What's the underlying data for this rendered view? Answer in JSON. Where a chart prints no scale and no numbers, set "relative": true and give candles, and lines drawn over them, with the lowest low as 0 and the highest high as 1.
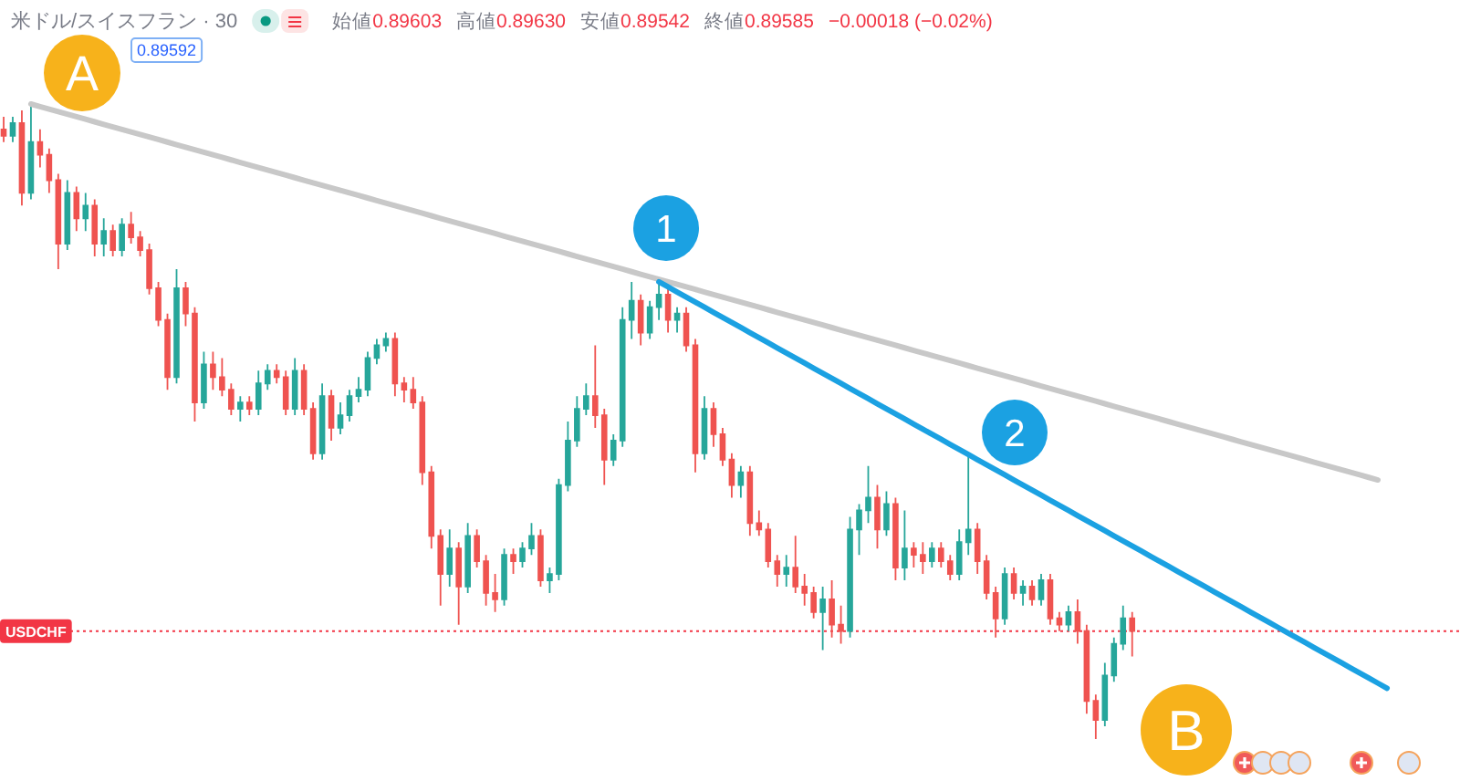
{
  "chart_data": {
    "type": "candlestick",
    "title": "米ドル/スイスフラン · 30",
    "relative": true,
    "categories": [
      null,
      null,
      null,
      null,
      null,
      null,
      null,
      null,
      null,
      null,
      null,
      null,
      null,
      null,
      null,
      null,
      null,
      null,
      null,
      null,
      null,
      null,
      null,
      null,
      null,
      null,
      null,
      null,
      null,
      null,
      null,
      null,
      null,
      null,
      null,
      null,
      null,
      null,
      null,
      null,
      null,
      null,
      null,
      null,
      null,
      null,
      null,
      null,
      null,
      null,
      null,
      null,
      null,
      null,
      null,
      null,
      null,
      null,
      null,
      null,
      null,
      null,
      null,
      null,
      null,
      null,
      null,
      null,
      null,
      null,
      null,
      null,
      null,
      null,
      null,
      null,
      null,
      null,
      null,
      null,
      null,
      null,
      null,
      null,
      null,
      null,
      null,
      null,
      null,
      null,
      null,
      null,
      null,
      null,
      null,
      null,
      null,
      null,
      null,
      null,
      null,
      null,
      null,
      null,
      null,
      null,
      null,
      null,
      null,
      null,
      null,
      null,
      null,
      null,
      null,
      null,
      null,
      null,
      null,
      null,
      null,
      null,
      null,
      null,
      null,
      null,
      null,
      null,
      null,
      null,
      null,
      null,
      null,
      null,
      null,
      null,
      null,
      null,
      null,
      null,
      null,
      null,
      null,
      null,
      null,
      null,
      null,
      null,
      null,
      null,
      null,
      null,
      null
    ],
    "ohlc": [
      [
        0.96,
        0.98,
        0.94,
        0.95
      ],
      [
        0.95,
        0.98,
        0.94,
        0.97
      ],
      [
        0.97,
        0.99,
        0.84,
        0.86
      ],
      [
        0.86,
        1.0,
        0.85,
        0.94
      ],
      [
        0.94,
        0.96,
        0.9,
        0.92
      ],
      [
        0.92,
        0.93,
        0.86,
        0.88
      ],
      [
        0.88,
        0.89,
        0.74,
        0.78
      ],
      [
        0.78,
        0.88,
        0.77,
        0.86
      ],
      [
        0.86,
        0.87,
        0.8,
        0.82
      ],
      [
        0.82,
        0.86,
        0.8,
        0.84
      ],
      [
        0.84,
        0.85,
        0.76,
        0.78
      ],
      [
        0.78,
        0.82,
        0.76,
        0.8
      ],
      [
        0.8,
        0.81,
        0.76,
        0.77
      ],
      [
        0.77,
        0.82,
        0.76,
        0.81
      ],
      [
        0.81,
        0.83,
        0.78,
        0.79
      ],
      [
        0.79,
        0.8,
        0.76,
        0.77
      ],
      [
        0.77,
        0.78,
        0.7,
        0.71
      ],
      [
        0.71,
        0.72,
        0.65,
        0.66
      ],
      [
        0.66,
        0.67,
        0.55,
        0.57
      ],
      [
        0.57,
        0.74,
        0.56,
        0.71
      ],
      [
        0.71,
        0.72,
        0.65,
        0.67
      ],
      [
        0.67,
        0.68,
        0.5,
        0.53
      ],
      [
        0.53,
        0.61,
        0.52,
        0.59
      ],
      [
        0.59,
        0.61,
        0.55,
        0.57
      ],
      [
        0.57,
        0.6,
        0.54,
        0.55
      ],
      [
        0.55,
        0.56,
        0.51,
        0.52
      ],
      [
        0.52,
        0.54,
        0.5,
        0.53
      ],
      [
        0.53,
        0.54,
        0.51,
        0.52
      ],
      [
        0.52,
        0.58,
        0.51,
        0.56
      ],
      [
        0.56,
        0.59,
        0.55,
        0.58
      ],
      [
        0.58,
        0.59,
        0.56,
        0.57
      ],
      [
        0.57,
        0.58,
        0.51,
        0.52
      ],
      [
        0.52,
        0.6,
        0.51,
        0.58
      ],
      [
        0.58,
        0.59,
        0.51,
        0.52
      ],
      [
        0.52,
        0.53,
        0.44,
        0.45
      ],
      [
        0.45,
        0.56,
        0.44,
        0.54
      ],
      [
        0.54,
        0.55,
        0.47,
        0.49
      ],
      [
        0.49,
        0.53,
        0.48,
        0.51
      ],
      [
        0.51,
        0.55,
        0.5,
        0.54
      ],
      [
        0.54,
        0.57,
        0.53,
        0.55
      ],
      [
        0.55,
        0.61,
        0.54,
        0.6
      ],
      [
        0.6,
        0.63,
        0.59,
        0.62
      ],
      [
        0.62,
        0.64,
        0.61,
        0.63
      ],
      [
        0.63,
        0.64,
        0.54,
        0.56
      ],
      [
        0.56,
        0.57,
        0.53,
        0.55
      ],
      [
        0.55,
        0.57,
        0.52,
        0.53
      ],
      [
        0.53,
        0.54,
        0.4,
        0.42
      ],
      [
        0.42,
        0.43,
        0.3,
        0.32
      ],
      [
        0.32,
        0.33,
        0.21,
        0.26
      ],
      [
        0.26,
        0.33,
        0.24,
        0.3
      ],
      [
        0.3,
        0.31,
        0.18,
        0.24
      ],
      [
        0.24,
        0.34,
        0.23,
        0.32
      ],
      [
        0.32,
        0.33,
        0.27,
        0.28
      ],
      [
        0.28,
        0.29,
        0.21,
        0.23
      ],
      [
        0.23,
        0.26,
        0.2,
        0.22
      ],
      [
        0.22,
        0.3,
        0.21,
        0.29
      ],
      [
        0.29,
        0.3,
        0.26,
        0.28
      ],
      [
        0.28,
        0.31,
        0.27,
        0.3
      ],
      [
        0.3,
        0.34,
        0.29,
        0.32
      ],
      [
        0.32,
        0.33,
        0.24,
        0.25
      ],
      [
        0.25,
        0.27,
        0.23,
        0.26
      ],
      [
        0.26,
        0.41,
        0.25,
        0.4
      ],
      [
        0.4,
        0.5,
        0.39,
        0.47
      ],
      [
        0.47,
        0.54,
        0.46,
        0.52
      ],
      [
        0.52,
        0.56,
        0.51,
        0.54
      ],
      [
        0.54,
        0.62,
        0.49,
        0.51
      ],
      [
        0.51,
        0.52,
        0.4,
        0.44
      ],
      [
        0.44,
        0.48,
        0.43,
        0.47
      ],
      [
        0.47,
        0.68,
        0.46,
        0.66
      ],
      [
        0.66,
        0.72,
        0.63,
        0.69
      ],
      [
        0.69,
        0.7,
        0.62,
        0.64
      ],
      [
        0.64,
        0.69,
        0.63,
        0.68
      ],
      [
        0.68,
        0.72,
        0.66,
        0.7
      ],
      [
        0.7,
        0.71,
        0.64,
        0.66
      ],
      [
        0.66,
        0.68,
        0.64,
        0.67
      ],
      [
        0.67,
        0.68,
        0.61,
        0.62
      ],
      [
        0.62,
        0.63,
        0.42,
        0.45
      ],
      [
        0.45,
        0.54,
        0.44,
        0.52
      ],
      [
        0.52,
        0.53,
        0.46,
        0.48
      ],
      [
        0.48,
        0.49,
        0.43,
        0.44
      ],
      [
        0.44,
        0.45,
        0.38,
        0.4
      ],
      [
        0.4,
        0.43,
        0.38,
        0.42
      ],
      [
        0.42,
        0.43,
        0.32,
        0.34
      ],
      [
        0.34,
        0.36,
        0.32,
        0.33
      ],
      [
        0.33,
        0.34,
        0.27,
        0.28
      ],
      [
        0.28,
        0.29,
        0.24,
        0.26
      ],
      [
        0.26,
        0.29,
        0.24,
        0.27
      ],
      [
        0.27,
        0.32,
        0.23,
        0.24
      ],
      [
        0.24,
        0.26,
        0.21,
        0.23
      ],
      [
        0.23,
        0.24,
        0.19,
        0.2
      ],
      [
        0.2,
        0.24,
        0.14,
        0.22
      ],
      [
        0.22,
        0.25,
        0.16,
        0.18
      ],
      [
        0.18,
        0.21,
        0.15,
        0.17
      ],
      [
        0.17,
        0.35,
        0.16,
        0.33
      ],
      [
        0.33,
        0.37,
        0.29,
        0.36
      ],
      [
        0.36,
        0.43,
        0.34,
        0.38
      ],
      [
        0.38,
        0.4,
        0.3,
        0.33
      ],
      [
        0.33,
        0.39,
        0.32,
        0.37
      ],
      [
        0.37,
        0.38,
        0.25,
        0.27
      ],
      [
        0.27,
        0.36,
        0.25,
        0.3
      ],
      [
        0.3,
        0.31,
        0.27,
        0.29
      ],
      [
        0.29,
        0.31,
        0.26,
        0.28
      ],
      [
        0.28,
        0.31,
        0.27,
        0.3
      ],
      [
        0.3,
        0.31,
        0.27,
        0.28
      ],
      [
        0.28,
        0.29,
        0.25,
        0.26
      ],
      [
        0.26,
        0.33,
        0.25,
        0.31
      ],
      [
        0.31,
        0.45,
        0.29,
        0.33
      ],
      [
        0.33,
        0.34,
        0.26,
        0.28
      ],
      [
        0.28,
        0.29,
        0.22,
        0.23
      ],
      [
        0.23,
        0.24,
        0.16,
        0.19
      ],
      [
        0.19,
        0.27,
        0.18,
        0.26
      ],
      [
        0.26,
        0.27,
        0.22,
        0.23
      ],
      [
        0.23,
        0.25,
        0.21,
        0.24
      ],
      [
        0.24,
        0.25,
        0.21,
        0.22
      ],
      [
        0.22,
        0.26,
        0.21,
        0.25
      ],
      [
        0.25,
        0.26,
        0.18,
        0.19
      ],
      [
        0.19,
        0.2,
        0.17,
        0.18
      ],
      [
        0.18,
        0.21,
        0.17,
        0.2
      ],
      [
        0.2,
        0.22,
        0.15,
        0.17
      ],
      [
        0.17,
        0.18,
        0.04,
        0.06
      ],
      [
        0.06,
        0.07,
        0.0,
        0.03
      ],
      [
        0.03,
        0.12,
        0.02,
        0.1
      ],
      [
        0.1,
        0.16,
        0.09,
        0.15
      ],
      [
        0.15,
        0.21,
        0.14,
        0.19
      ],
      [
        0.19,
        0.2,
        0.13,
        0.17
      ],
      null,
      null,
      null,
      null,
      null,
      null,
      null,
      null,
      null,
      null,
      null,
      null,
      null,
      null,
      null,
      null,
      null,
      null,
      null,
      null,
      null,
      null,
      null,
      null,
      null,
      null,
      null,
      null
    ],
    "colors": [
      "#ef5350",
      "#26a69a",
      "#ef5350",
      "#26a69a",
      "#ef5350",
      "#ef5350",
      "#ef5350",
      "#26a69a",
      "#ef5350",
      "#26a69a",
      "#ef5350",
      "#26a69a",
      "#ef5350",
      "#26a69a",
      "#ef5350",
      "#ef5350",
      "#ef5350",
      "#ef5350",
      "#ef5350",
      "#26a69a",
      "#ef5350",
      "#ef5350",
      "#26a69a",
      "#ef5350",
      "#ef5350",
      "#ef5350",
      "#26a69a",
      "#ef5350",
      "#26a69a",
      "#26a69a",
      "#ef5350",
      "#ef5350",
      "#26a69a",
      "#ef5350",
      "#ef5350",
      "#26a69a",
      "#ef5350",
      "#26a69a",
      "#26a69a",
      "#26a69a",
      "#26a69a",
      "#26a69a",
      "#26a69a",
      "#ef5350",
      "#ef5350",
      "#ef5350",
      "#ef5350",
      "#ef5350",
      "#ef5350",
      "#26a69a",
      "#ef5350",
      "#26a69a",
      "#ef5350",
      "#ef5350",
      "#ef5350",
      "#26a69a",
      "#ef5350",
      "#26a69a",
      "#26a69a",
      "#ef5350",
      "#26a69a",
      "#26a69a",
      "#26a69a",
      "#26a69a",
      "#26a69a",
      "#ef5350",
      "#ef5350",
      "#26a69a",
      "#26a69a",
      "#26a69a",
      "#ef5350",
      "#26a69a",
      "#26a69a",
      "#ef5350",
      "#26a69a",
      "#ef5350",
      "#ef5350",
      "#26a69a",
      "#ef5350",
      "#ef5350",
      "#ef5350",
      "#26a69a",
      "#ef5350",
      "#ef5350",
      "#ef5350",
      "#ef5350",
      "#26a69a",
      "#ef5350",
      "#ef5350",
      "#ef5350",
      "#26a69a",
      "#ef5350",
      "#ef5350",
      "#26a69a",
      "#26a69a",
      "#26a69a",
      "#ef5350",
      "#26a69a",
      "#ef5350",
      "#26a69a",
      "#ef5350",
      "#ef5350",
      "#26a69a",
      "#ef5350",
      "#ef5350",
      "#26a69a",
      "#26a69a",
      "#ef5350",
      "#ef5350",
      "#ef5350",
      "#26a69a",
      "#ef5350",
      "#26a69a",
      "#ef5350",
      "#26a69a",
      "#ef5350",
      "#ef5350",
      "#26a69a",
      "#ef5350",
      "#ef5350",
      "#ef5350",
      "#26a69a",
      "#26a69a",
      "#26a69a",
      "#ef5350",
      null,
      null,
      null,
      null,
      null,
      null,
      null,
      null,
      null,
      null,
      null,
      null,
      null,
      null,
      null,
      null,
      null,
      null,
      null,
      null,
      null,
      null,
      null,
      null,
      null,
      null,
      null,
      null
    ],
    "series": [
      {
        "type": "line",
        "color": "#c8c8c8",
        "values": [
          null,
          null,
          null,
          1.0,
          0.996,
          0.992,
          0.988,
          0.984,
          0.98,
          0.976,
          0.972,
          0.968,
          0.964,
          0.96,
          0.956,
          0.952,
          0.948,
          0.944,
          0.94,
          0.936,
          0.932,
          0.928,
          0.924,
          0.92,
          0.916,
          0.912,
          0.908,
          0.904,
          0.9,
          0.896,
          0.892,
          0.888,
          0.884,
          0.88,
          0.876,
          0.872,
          0.868,
          0.864,
          0.86,
          0.856,
          0.852,
          0.848,
          0.844,
          0.84,
          0.836,
          0.832,
          0.828,
          0.824,
          0.82,
          0.816,
          0.812,
          0.808,
          0.804,
          0.8,
          0.796,
          0.792,
          0.788,
          0.784,
          0.78,
          0.776,
          0.772,
          0.768,
          0.764,
          0.76,
          0.756,
          0.752,
          0.748,
          0.744,
          0.74,
          0.736,
          0.732,
          0.728,
          0.724,
          0.72,
          0.716,
          0.712,
          0.708,
          0.704,
          0.7,
          0.696,
          0.692,
          0.688,
          0.684,
          0.68,
          0.676,
          0.672,
          0.668,
          0.664,
          0.66,
          0.656,
          0.652,
          0.648,
          0.644,
          0.64,
          0.636,
          0.632,
          0.628,
          0.624,
          0.62,
          0.616,
          0.612,
          0.608,
          0.604,
          0.6,
          0.596,
          0.592,
          0.588,
          0.584,
          0.58,
          0.576,
          0.572,
          0.568,
          0.564,
          0.56,
          0.556,
          0.552,
          0.548,
          0.544,
          0.54,
          0.536,
          0.532,
          0.528,
          0.524,
          0.52,
          0.516,
          0.512,
          0.508,
          0.504,
          0.5,
          0.496,
          0.492,
          0.488,
          0.484,
          0.48,
          0.476,
          0.472,
          0.468,
          0.464,
          0.46,
          0.456,
          0.452,
          0.448,
          0.444,
          0.44,
          0.436,
          0.432,
          0.428,
          0.424,
          0.42,
          0.416,
          0.412,
          0.408,
          null
        ]
      },
      {
        "type": "line",
        "color": "#1ba1e2",
        "values": [
          null,
          null,
          null,
          null,
          null,
          null,
          null,
          null,
          null,
          null,
          null,
          null,
          null,
          null,
          null,
          null,
          null,
          null,
          null,
          null,
          null,
          null,
          null,
          null,
          null,
          null,
          null,
          null,
          null,
          null,
          null,
          null,
          null,
          null,
          null,
          null,
          null,
          null,
          null,
          null,
          null,
          null,
          null,
          null,
          null,
          null,
          null,
          null,
          null,
          null,
          null,
          null,
          null,
          null,
          null,
          null,
          null,
          null,
          null,
          null,
          null,
          null,
          null,
          null,
          null,
          null,
          null,
          null,
          null,
          null,
          null,
          null,
          0.72,
          0.712,
          0.704,
          0.696,
          0.688,
          0.68,
          0.672,
          0.664,
          0.656,
          0.648,
          0.64,
          0.632,
          0.624,
          0.616,
          0.608,
          0.6,
          0.592,
          0.584,
          0.576,
          0.568,
          0.56,
          0.552,
          0.544,
          0.536,
          0.528,
          0.52,
          0.512,
          0.504,
          0.496,
          0.488,
          0.48,
          0.472,
          0.464,
          0.456,
          0.448,
          0.44,
          0.432,
          0.424,
          0.416,
          0.408,
          0.4,
          0.392,
          0.384,
          0.376,
          0.368,
          0.36,
          0.352,
          0.344,
          0.336,
          0.328,
          0.32,
          0.312,
          0.304,
          0.296,
          0.288,
          0.28,
          0.272,
          0.264,
          0.256,
          0.248,
          0.24,
          0.232,
          0.224,
          0.216,
          0.208,
          0.2,
          0.192,
          0.184,
          0.176,
          0.168,
          0.16,
          0.152,
          0.144,
          0.136,
          0.128,
          0.12,
          0.112,
          0.104,
          0.096,
          0.088,
          0.08
        ]
      }
    ],
    "ref_lines": [
      {
        "axis": "y",
        "value": 0.17,
        "label": "USDCHF",
        "color": "#f23645",
        "line_style": "dotted"
      }
    ],
    "annotations": [
      "A",
      "B",
      "1",
      "2",
      "始値0.89603",
      "高値0.89630",
      "安値0.89542",
      "終値0.89585",
      "−0.00018 (−0.02%)",
      "0.89592"
    ]
  }
}
